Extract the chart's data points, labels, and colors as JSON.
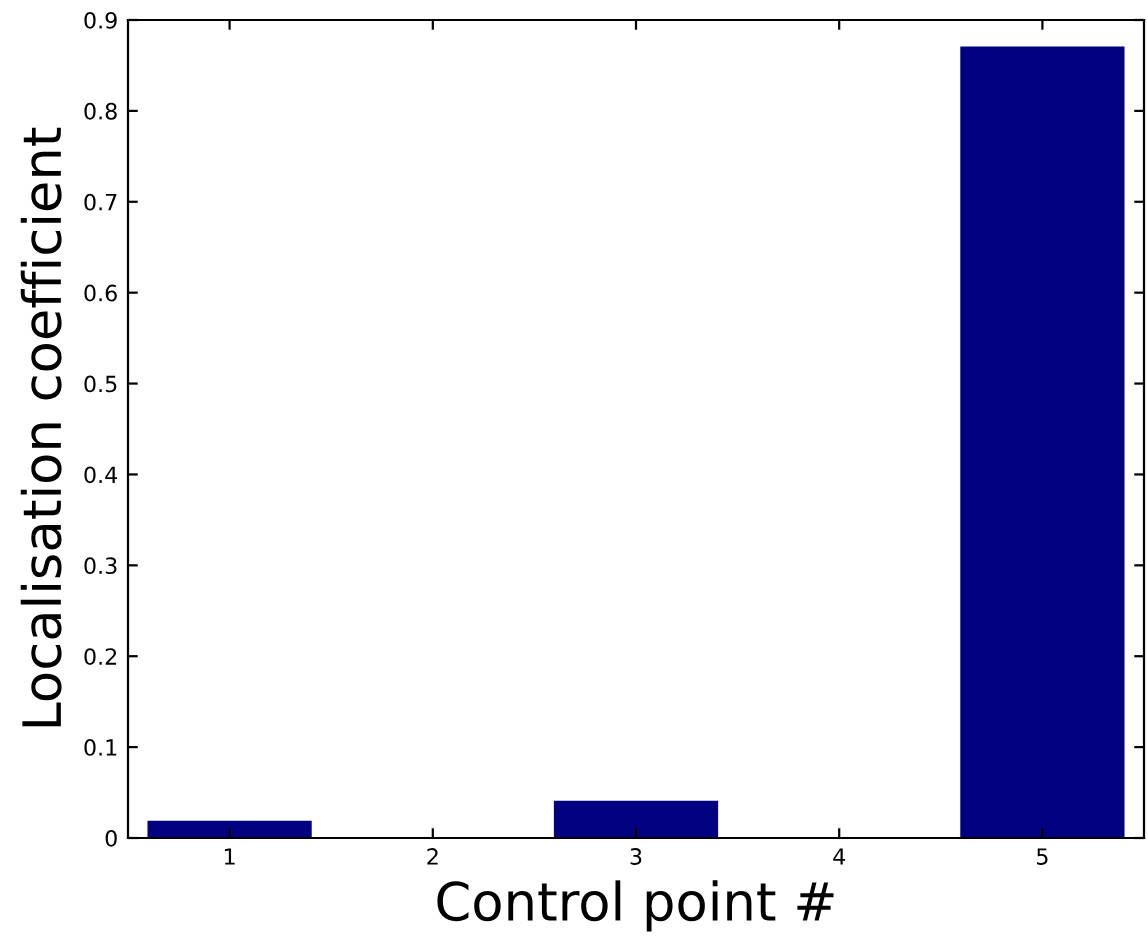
{
  "chart_data": {
    "type": "bar",
    "xlabel": "Control point #",
    "ylabel": "Localisation coefficient",
    "categories": [
      "1",
      "2",
      "3",
      "4",
      "5"
    ],
    "values": [
      0.018,
      0,
      0.04,
      0,
      0.87
    ],
    "color": "#000080",
    "ylim": [
      0,
      0.9
    ],
    "yticks": [
      0,
      0.1,
      0.2,
      0.3,
      0.4,
      0.5,
      0.6,
      0.7,
      0.8,
      0.9
    ],
    "grid": false
  }
}
